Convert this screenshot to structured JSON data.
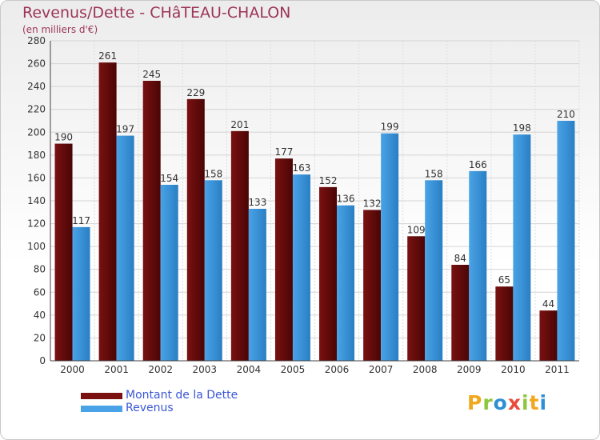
{
  "header": {
    "title": "Revenus/Dette - CHâTEAU-CHALON",
    "subtitle": "(en milliers d'€)"
  },
  "logo": {
    "text": "Proxiti",
    "letters": [
      {
        "ch": "P",
        "color": "#f0a81e"
      },
      {
        "ch": "r",
        "color": "#8cc63f"
      },
      {
        "ch": "o",
        "color": "#2e8fd6"
      },
      {
        "ch": "x",
        "color": "#e84b3c"
      },
      {
        "ch": "i",
        "color": "#8cc63f"
      },
      {
        "ch": "t",
        "color": "#f0a81e"
      },
      {
        "ch": "i",
        "color": "#2e8fd6"
      }
    ]
  },
  "chart_data": {
    "type": "bar",
    "title": "Revenus/Dette - CHâTEAU-CHALON",
    "subtitle": "(en milliers d'€)",
    "categories": [
      "2000",
      "2001",
      "2002",
      "2003",
      "2004",
      "2005",
      "2006",
      "2007",
      "2008",
      "2009",
      "2010",
      "2011"
    ],
    "series": [
      {
        "name": "Montant de la Dette",
        "color": "#7a1010",
        "values": [
          190,
          261,
          245,
          229,
          201,
          177,
          152,
          132,
          109,
          84,
          65,
          44
        ]
      },
      {
        "name": "Revenus",
        "color": "#4aa3e6",
        "values": [
          117,
          197,
          154,
          158,
          133,
          163,
          136,
          199,
          158,
          166,
          198,
          210
        ]
      }
    ],
    "yticks": [
      0,
      20,
      40,
      60,
      80,
      100,
      120,
      140,
      160,
      180,
      200,
      220,
      240,
      260,
      280
    ],
    "ylim": [
      0,
      280
    ],
    "grid": true,
    "legend": "bottom-left"
  }
}
